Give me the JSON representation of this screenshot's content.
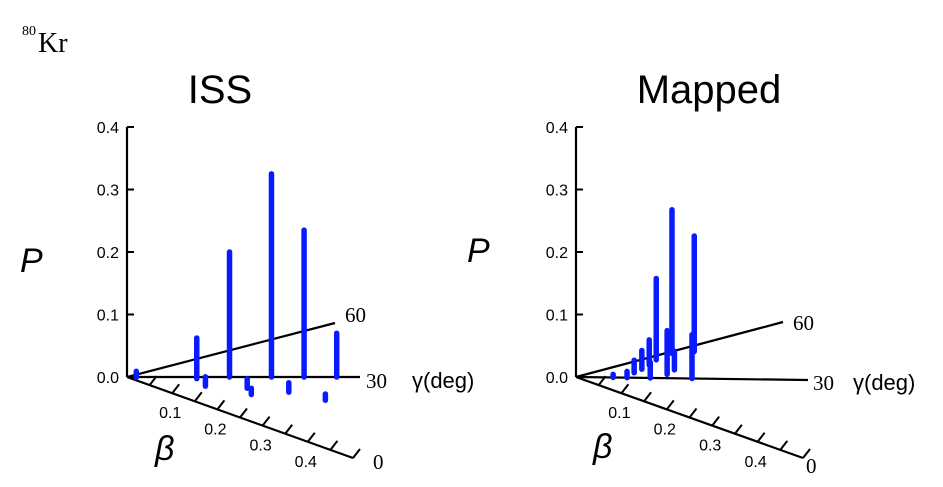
{
  "nucleus": {
    "mass": "80",
    "symbol": "Kr"
  },
  "chart_data": [
    {
      "type": "bar3d",
      "title": "ISS",
      "zlabel": "P",
      "xlabel": "β",
      "ylabel": "γ(deg)",
      "z_ticks": [
        "0.0",
        "0.1",
        "0.2",
        "0.3",
        "0.4"
      ],
      "beta_ticks": [
        "0.1",
        "0.2",
        "0.3",
        "0.4"
      ],
      "gamma_ticks": [
        "0",
        "30",
        "60"
      ],
      "zlim": [
        0,
        0.4
      ],
      "bars": [
        {
          "beta": 0.02,
          "gamma": 25,
          "p": 0.01
        },
        {
          "beta": 0.15,
          "gamma": 28,
          "p": 0.065
        },
        {
          "beta": 0.17,
          "gamma": 20,
          "p": 0.015
        },
        {
          "beta": 0.22,
          "gamma": 30,
          "p": 0.2
        },
        {
          "beta": 0.26,
          "gamma": 22,
          "p": 0.015
        },
        {
          "beta": 0.27,
          "gamma": 18,
          "p": 0.01
        },
        {
          "beta": 0.31,
          "gamma": 30,
          "p": 0.325
        },
        {
          "beta": 0.35,
          "gamma": 22,
          "p": 0.015
        },
        {
          "beta": 0.38,
          "gamma": 30,
          "p": 0.235
        },
        {
          "beta": 0.43,
          "gamma": 20,
          "p": 0.01
        },
        {
          "beta": 0.45,
          "gamma": 30,
          "p": 0.07
        }
      ]
    },
    {
      "type": "bar3d",
      "title": "Mapped",
      "zlabel": "P",
      "xlabel": "β",
      "ylabel": "γ(deg)",
      "z_ticks": [
        "0.0",
        "0.1",
        "0.2",
        "0.3",
        "0.4"
      ],
      "beta_ticks": [
        "0.1",
        "0.2",
        "0.3",
        "0.4"
      ],
      "gamma_ticks": [
        "0",
        "30",
        "60"
      ],
      "zlim": [
        0,
        0.4
      ],
      "bars": [
        {
          "beta": 0.08,
          "gamma": 30,
          "p": 0.005
        },
        {
          "beta": 0.11,
          "gamma": 30,
          "p": 0.01
        },
        {
          "beta": 0.13,
          "gamma": 40,
          "p": 0.02
        },
        {
          "beta": 0.15,
          "gamma": 45,
          "p": 0.03
        },
        {
          "beta": 0.16,
          "gamma": 30,
          "p": 0.025
        },
        {
          "beta": 0.17,
          "gamma": 50,
          "p": 0.04
        },
        {
          "beta": 0.19,
          "gamma": 55,
          "p": 0.13
        },
        {
          "beta": 0.2,
          "gamma": 35,
          "p": 0.07
        },
        {
          "beta": 0.22,
          "gamma": 40,
          "p": 0.03
        },
        {
          "beta": 0.23,
          "gamma": 58,
          "p": 0.23
        },
        {
          "beta": 0.25,
          "gamma": 30,
          "p": 0.07
        },
        {
          "beta": 0.28,
          "gamma": 55,
          "p": 0.185
        }
      ]
    }
  ]
}
